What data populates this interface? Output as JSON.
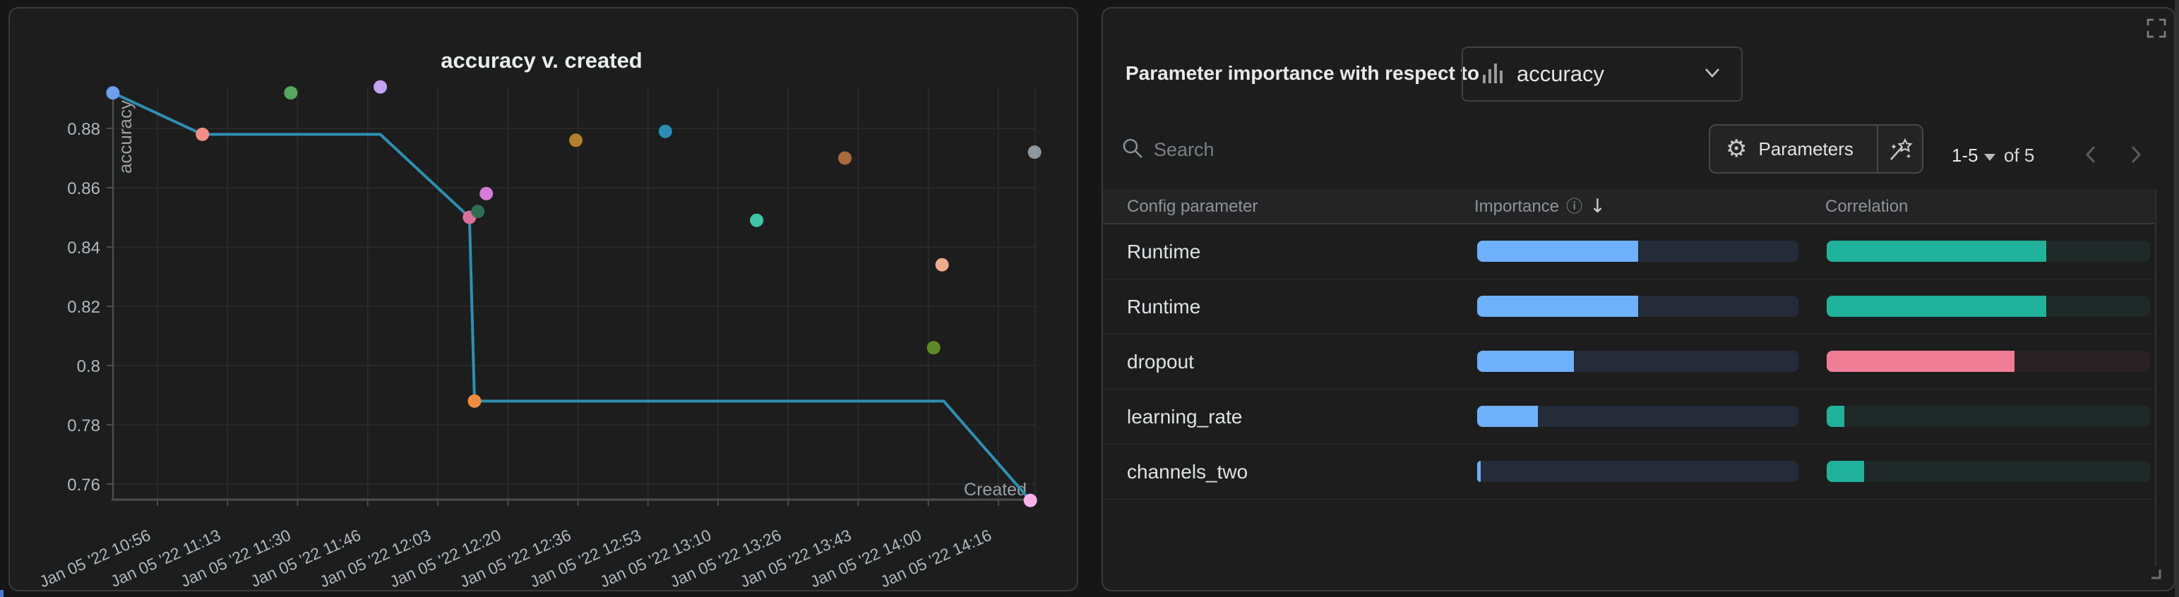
{
  "chart_data": {
    "type": "line+scatter",
    "title": "accuracy v. created",
    "xlabel": "Created",
    "ylabel": "accuracy",
    "x_tick_labels": [
      "Jan 05 '22 10:56",
      "Jan 05 '22 11:13",
      "Jan 05 '22 11:30",
      "Jan 05 '22 11:46",
      "Jan 05 '22 12:03",
      "Jan 05 '22 12:20",
      "Jan 05 '22 12:36",
      "Jan 05 '22 12:53",
      "Jan 05 '22 13:10",
      "Jan 05 '22 13:26",
      "Jan 05 '22 13:43",
      "Jan 05 '22 14:00",
      "Jan 05 '22 14:16"
    ],
    "y_tick_labels": [
      "0.88",
      "0.86",
      "0.84",
      "0.82",
      "0.8",
      "0.78",
      "0.76"
    ],
    "ylim": [
      0.753,
      0.897
    ],
    "minutes_per_tick": 16.667,
    "grid": true,
    "line": {
      "color": "#2e8fb3",
      "points": [
        [
          -10.6,
          0.892
        ],
        [
          10.7,
          0.878
        ],
        [
          53,
          0.878
        ],
        [
          74.2,
          0.85
        ],
        [
          75.4,
          0.788
        ],
        [
          187,
          0.788
        ],
        [
          207.6,
          0.7545
        ]
      ]
    },
    "scatter": [
      {
        "time": "Jan 05 '22 10:45",
        "t": -10.6,
        "v": 0.892,
        "color": "#6d9ff2"
      },
      {
        "time": "Jan 05 '22 11:07",
        "t": 10.7,
        "v": 0.878,
        "color": "#f58b86"
      },
      {
        "time": "Jan 05 '22 11:28",
        "t": 31.7,
        "v": 0.892,
        "color": "#55a860"
      },
      {
        "time": "Jan 05 '22 11:49",
        "t": 53.0,
        "v": 0.894,
        "color": "#c4a3f2"
      },
      {
        "time": "Jan 05 '22 12:10",
        "t": 74.2,
        "v": 0.85,
        "color": "#dd6f9b"
      },
      {
        "time": "Jan 05 '22 12:12",
        "t": 76.2,
        "v": 0.852,
        "color": "#2d6f52"
      },
      {
        "time": "Jan 05 '22 12:14",
        "t": 78.2,
        "v": 0.858,
        "color": "#d67bd8"
      },
      {
        "time": "Jan 05 '22 12:11",
        "t": 75.4,
        "v": 0.788,
        "color": "#ee8d3e"
      },
      {
        "time": "Jan 05 '22 12:36",
        "t": 99.5,
        "v": 0.876,
        "color": "#b3802c"
      },
      {
        "time": "Jan 05 '22 12:57",
        "t": 120.8,
        "v": 0.879,
        "color": "#2a8cb5"
      },
      {
        "time": "Jan 05 '22 13:19",
        "t": 142.5,
        "v": 0.849,
        "color": "#3fc7a7"
      },
      {
        "time": "Jan 05 '22 13:40",
        "t": 163.5,
        "v": 0.87,
        "color": "#a96a3e"
      },
      {
        "time": "Jan 05 '22 14:01",
        "t": 184.6,
        "v": 0.806,
        "color": "#5f8a28"
      },
      {
        "time": "Jan 05 '22 14:03",
        "t": 186.6,
        "v": 0.834,
        "color": "#edab8d"
      },
      {
        "time": "Jan 05 '22 14:25",
        "t": 208.6,
        "v": 0.872,
        "color": "#8f989e"
      },
      {
        "time": "Jan 05 '22 14:24",
        "t": 207.6,
        "v": 0.7545,
        "color": "#f9b3ea"
      }
    ],
    "colors": {
      "grid": "#2d2d2d",
      "axis": "#4d4d4d",
      "tick_text": "#b4b8ba",
      "axis_label_text": "#9ba0a2"
    }
  },
  "importance_panel": {
    "heading": "Parameter importance with respect to",
    "metric": "accuracy",
    "search_placeholder": "Search",
    "parameters_button": "Parameters",
    "page_range": "1-5",
    "page_total": "of 5",
    "columns": {
      "param": "Config parameter",
      "importance": "Importance",
      "correlation": "Correlation"
    },
    "info_glyph": "ⓘ",
    "sort_glyph": "↓",
    "gear_glyph": "⚙",
    "bar_colors": {
      "importance": "#6fb0fa",
      "positive": "#20b29a",
      "negative": "#f07d96"
    },
    "rows": [
      {
        "param": "Runtime",
        "importance": 0.5,
        "correlation": 0.68,
        "correlation_sign": "positive"
      },
      {
        "param": "Runtime",
        "importance": 0.5,
        "correlation": 0.68,
        "correlation_sign": "positive"
      },
      {
        "param": "dropout",
        "importance": 0.3,
        "correlation": 0.58,
        "correlation_sign": "negative"
      },
      {
        "param": "learning_rate",
        "importance": 0.19,
        "correlation": 0.055,
        "correlation_sign": "positive"
      },
      {
        "param": "channels_two",
        "importance": 0.012,
        "correlation": 0.115,
        "correlation_sign": "positive"
      }
    ]
  }
}
